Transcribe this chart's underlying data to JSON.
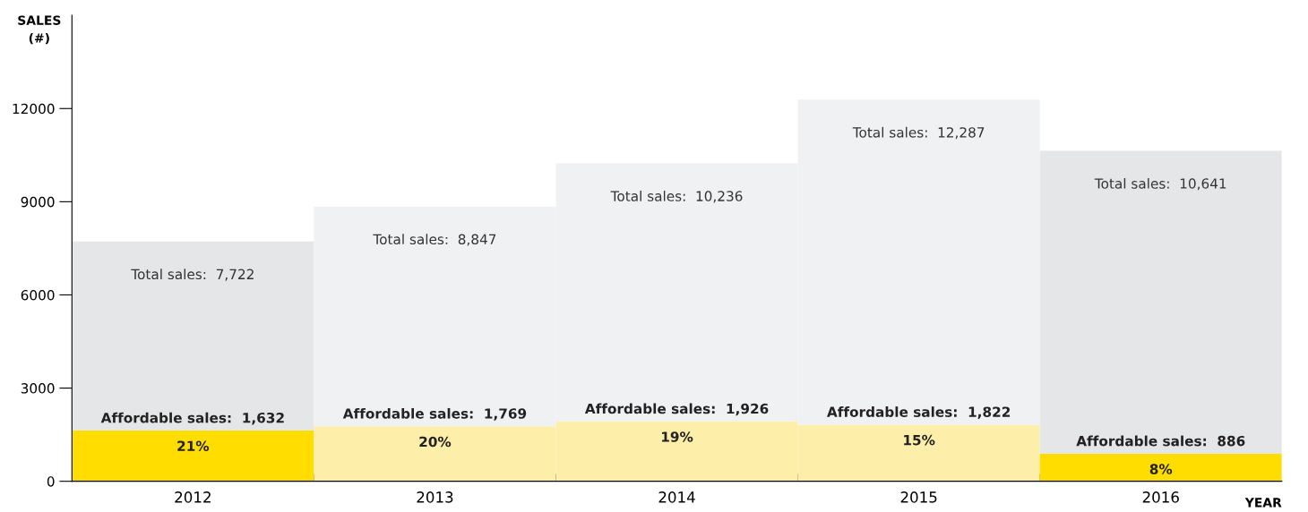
{
  "chart_data": {
    "type": "bar",
    "stacked": true,
    "ylabel": "SALES\n(#)",
    "xlabel": "YEAR",
    "categories": [
      "2012",
      "2013",
      "2014",
      "2015",
      "2016"
    ],
    "series": [
      {
        "colors": [
          "#ffdd00",
          "#fdeeaa",
          "#fdeeaa",
          "#fdeeaa",
          "#ffdd00"
        ],
        "values": [
          1632,
          1769,
          1926,
          1822,
          886
        ],
        "value_labels": [
          "Affordable sales:  1,632",
          "Affordable sales:  1,769",
          "Affordable sales:  1,926",
          "Affordable sales:  1,822",
          "Affordable sales:  886"
        ]
      },
      {
        "colors": [
          "#e5e6e8",
          "#f0f1f3",
          "#f0f1f3",
          "#f0f1f3",
          "#e5e6e8"
        ],
        "values": [
          6090,
          7078,
          8310,
          10465,
          9755
        ]
      }
    ],
    "totals": [
      "Total sales:  7,722",
      "Total sales:  8,847",
      "Total sales:  10,236",
      "Total sales:  12,287",
      "Total sales:  10,641"
    ],
    "annotations": [
      {
        "text": "21%",
        "x": "2012",
        "y": 1632
      },
      {
        "text": "20%",
        "x": "2013",
        "y": 1769
      },
      {
        "text": "19%",
        "x": "2014",
        "y": 1926
      },
      {
        "text": "15%",
        "x": "2015",
        "y": 1822
      },
      {
        "text": "8%",
        "x": "2016",
        "y": 886
      }
    ],
    "ylim": [
      0,
      15000
    ],
    "yticks": [
      0,
      3000,
      6000,
      9000,
      12000
    ],
    "grid": false,
    "legend": false
  }
}
